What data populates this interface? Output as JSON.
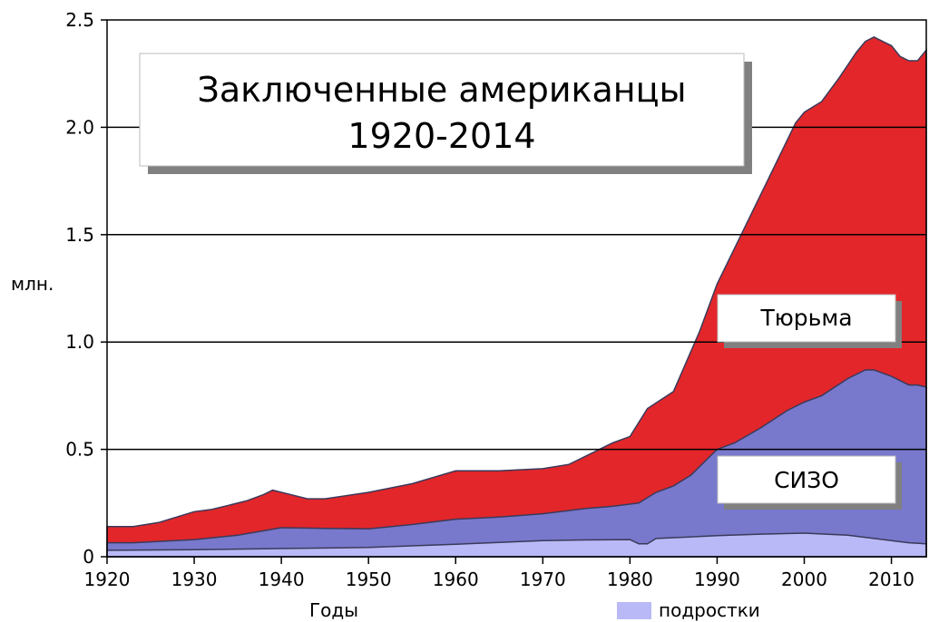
{
  "chart_data": {
    "type": "area",
    "title_line1": "Заключенные американцы",
    "title_line2": "1920-2014",
    "ylabel": "млн.",
    "xlabel": "Годы",
    "xlim": [
      1920,
      2014
    ],
    "ylim": [
      0,
      2.5
    ],
    "x_ticks": [
      1920,
      1930,
      1940,
      1950,
      1960,
      1970,
      1980,
      1990,
      2000,
      2010
    ],
    "y_ticks": [
      0,
      0.5,
      1.0,
      1.5,
      2.0,
      2.5
    ],
    "y_tick_labels": [
      "0",
      "0.5",
      "1.0",
      "1.5",
      "2.0",
      "2.5"
    ],
    "grid": "horizontal",
    "label_prison": "Тюрьма",
    "label_jail": "СИЗО",
    "legend_juvenile": "подростки",
    "colors": {
      "prison": "#e3262a",
      "jail": "#7878cc",
      "juvenile": "#b9b9f7",
      "outline": "#3a3a5a",
      "grid": "#000000"
    },
    "series": [
      {
        "name": "подростки",
        "x": [
          1920,
          1930,
          1940,
          1950,
          1960,
          1970,
          1975,
          1980,
          1981,
          1982,
          1983,
          1990,
          1995,
          2000,
          2005,
          2010,
          2012,
          2014
        ],
        "values": [
          0.03,
          0.033,
          0.038,
          0.043,
          0.058,
          0.075,
          0.078,
          0.08,
          0.06,
          0.06,
          0.085,
          0.098,
          0.105,
          0.11,
          0.1,
          0.075,
          0.065,
          0.06
        ]
      },
      {
        "name": "СИЗО",
        "x": [
          1920,
          1923,
          1930,
          1935,
          1940,
          1945,
          1950,
          1955,
          1960,
          1965,
          1970,
          1975,
          1978,
          1980,
          1981,
          1983,
          1985,
          1987,
          1990,
          1992,
          1995,
          1998,
          2000,
          2002,
          2005,
          2007,
          2008,
          2010,
          2011,
          2012,
          2013,
          2014
        ],
        "values": [
          0.065,
          0.065,
          0.08,
          0.1,
          0.135,
          0.132,
          0.13,
          0.15,
          0.175,
          0.185,
          0.2,
          0.225,
          0.235,
          0.245,
          0.25,
          0.3,
          0.33,
          0.38,
          0.5,
          0.53,
          0.6,
          0.68,
          0.72,
          0.75,
          0.83,
          0.87,
          0.87,
          0.84,
          0.82,
          0.8,
          0.8,
          0.79
        ]
      },
      {
        "name": "Тюрьма",
        "x": [
          1920,
          1923,
          1926,
          1930,
          1932,
          1934,
          1936,
          1938,
          1939,
          1941,
          1943,
          1945,
          1950,
          1955,
          1960,
          1965,
          1970,
          1973,
          1975,
          1978,
          1980,
          1982,
          1985,
          1988,
          1990,
          1993,
          1996,
          1999,
          2000,
          2002,
          2004,
          2006,
          2007,
          2008,
          2009,
          2010,
          2011,
          2012,
          2013,
          2014
        ],
        "values": [
          0.14,
          0.14,
          0.16,
          0.21,
          0.22,
          0.24,
          0.26,
          0.29,
          0.31,
          0.29,
          0.27,
          0.27,
          0.3,
          0.34,
          0.4,
          0.4,
          0.41,
          0.43,
          0.47,
          0.53,
          0.56,
          0.69,
          0.77,
          1.05,
          1.27,
          1.52,
          1.77,
          2.02,
          2.07,
          2.12,
          2.23,
          2.35,
          2.4,
          2.42,
          2.4,
          2.38,
          2.33,
          2.31,
          2.31,
          2.36
        ]
      }
    ]
  }
}
